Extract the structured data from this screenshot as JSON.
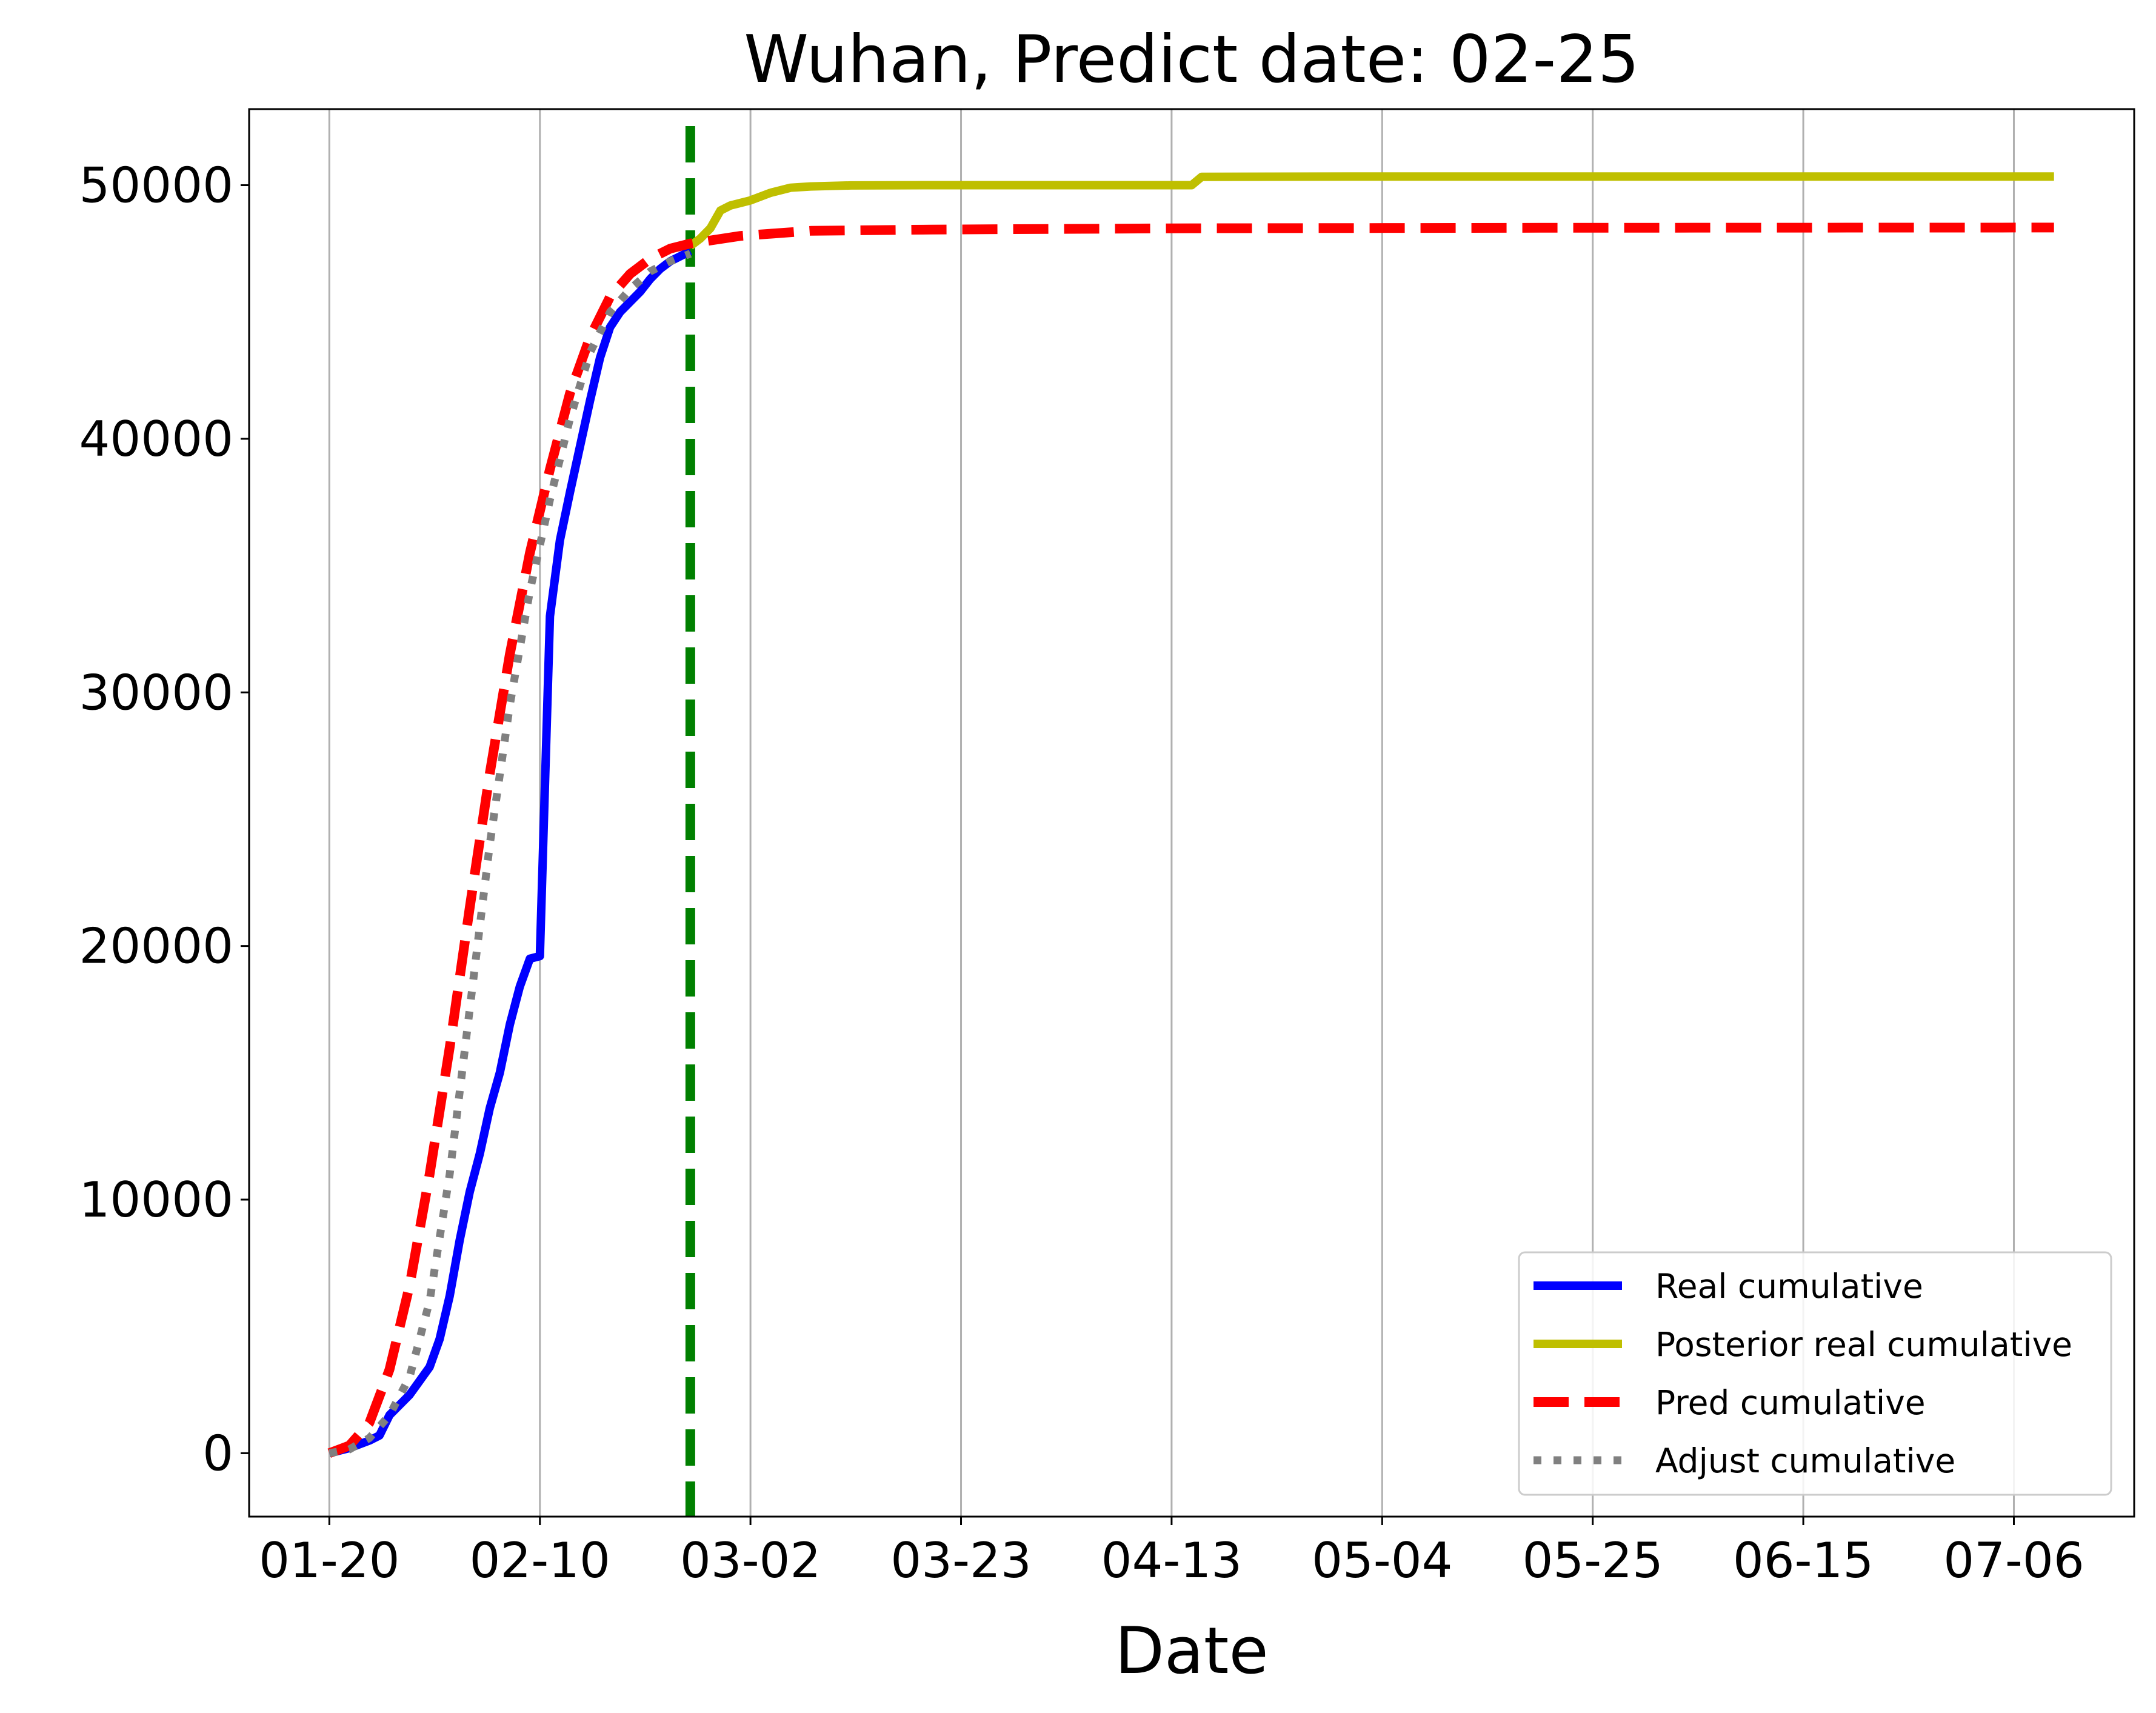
{
  "chart_data": {
    "type": "line",
    "title": "Wuhan, Predict date: 02-25",
    "xlabel": "Date",
    "ylabel": "",
    "x_axis": {
      "unit": "date (mm-dd, 2020)",
      "range": [
        "01-12",
        "07-18"
      ],
      "tick_labels": [
        "01-20",
        "02-10",
        "03-02",
        "03-23",
        "04-13",
        "05-04",
        "05-25",
        "06-15",
        "07-06"
      ]
    },
    "y_axis": {
      "range": [
        -2500,
        53000
      ],
      "tick_values": [
        0,
        10000,
        20000,
        30000,
        40000,
        50000
      ],
      "tick_labels": [
        "0",
        "10000",
        "20000",
        "30000",
        "40000",
        "50000"
      ]
    },
    "grid": "vertical only",
    "legend_position": "lower right",
    "predict_line": {
      "x": "02-25",
      "color": "#008000",
      "style": "dashed"
    },
    "series": [
      {
        "name": "Real cumulative",
        "color": "#0000ff",
        "style": "solid",
        "points": [
          [
            "01-20",
            0
          ],
          [
            "01-22",
            200
          ],
          [
            "01-24",
            500
          ],
          [
            "01-25",
            700
          ],
          [
            "01-26",
            1500
          ],
          [
            "01-28",
            2300
          ],
          [
            "01-30",
            3400
          ],
          [
            "01-31",
            4500
          ],
          [
            "02-01",
            6200
          ],
          [
            "02-02",
            8400
          ],
          [
            "02-03",
            10300
          ],
          [
            "02-04",
            11800
          ],
          [
            "02-05",
            13600
          ],
          [
            "02-06",
            15000
          ],
          [
            "02-07",
            16900
          ],
          [
            "02-08",
            18400
          ],
          [
            "02-09",
            19500
          ],
          [
            "02-10",
            19600
          ],
          [
            "02-11",
            33000
          ],
          [
            "02-12",
            36000
          ],
          [
            "02-13",
            37900
          ],
          [
            "02-14",
            39700
          ],
          [
            "02-15",
            41500
          ],
          [
            "02-16",
            43200
          ],
          [
            "02-17",
            44400
          ],
          [
            "02-18",
            45000
          ],
          [
            "02-19",
            45400
          ],
          [
            "02-20",
            45800
          ],
          [
            "02-21",
            46300
          ],
          [
            "02-22",
            46700
          ],
          [
            "02-23",
            47000
          ],
          [
            "02-24",
            47200
          ],
          [
            "02-25",
            47400
          ]
        ]
      },
      {
        "name": "Posterior real cumulative",
        "color": "#bfbf00",
        "style": "solid",
        "points": [
          [
            "02-25",
            47600
          ],
          [
            "02-26",
            47900
          ],
          [
            "02-27",
            48300
          ],
          [
            "02-28",
            49000
          ],
          [
            "02-29",
            49200
          ],
          [
            "03-01",
            49300
          ],
          [
            "03-02",
            49400
          ],
          [
            "03-04",
            49700
          ],
          [
            "03-06",
            49900
          ],
          [
            "03-08",
            49950
          ],
          [
            "03-12",
            49990
          ],
          [
            "03-20",
            50000
          ],
          [
            "04-01",
            50000
          ],
          [
            "04-15",
            50000
          ],
          [
            "04-16",
            50330
          ],
          [
            "05-01",
            50340
          ],
          [
            "06-01",
            50340
          ],
          [
            "07-10",
            50340
          ]
        ]
      },
      {
        "name": "Pred cumulative",
        "color": "#ff0000",
        "style": "dashed",
        "points": [
          [
            "01-20",
            0
          ],
          [
            "01-22",
            300
          ],
          [
            "01-24",
            1200
          ],
          [
            "01-26",
            3300
          ],
          [
            "01-28",
            6600
          ],
          [
            "01-30",
            11000
          ],
          [
            "02-01",
            16000
          ],
          [
            "02-03",
            21500
          ],
          [
            "02-05",
            26800
          ],
          [
            "02-07",
            31500
          ],
          [
            "02-09",
            35500
          ],
          [
            "02-11",
            38800
          ],
          [
            "02-13",
            41800
          ],
          [
            "02-15",
            44000
          ],
          [
            "02-17",
            45600
          ],
          [
            "02-19",
            46500
          ],
          [
            "02-21",
            47100
          ],
          [
            "02-23",
            47500
          ],
          [
            "02-25",
            47700
          ],
          [
            "03-01",
            48000
          ],
          [
            "03-08",
            48200
          ],
          [
            "03-20",
            48250
          ],
          [
            "04-15",
            48300
          ],
          [
            "05-20",
            48320
          ],
          [
            "07-10",
            48330
          ]
        ]
      },
      {
        "name": "Adjust cumulative",
        "color": "#808080",
        "style": "dotted",
        "points": [
          [
            "01-20",
            0
          ],
          [
            "01-22",
            150
          ],
          [
            "01-24",
            600
          ],
          [
            "01-26",
            1500
          ],
          [
            "01-28",
            3000
          ],
          [
            "01-30",
            6000
          ],
          [
            "02-01",
            11000
          ],
          [
            "02-03",
            17500
          ],
          [
            "02-05",
            24000
          ],
          [
            "02-07",
            29500
          ],
          [
            "02-09",
            34000
          ],
          [
            "02-11",
            37600
          ],
          [
            "02-13",
            40800
          ],
          [
            "02-15",
            43400
          ],
          [
            "02-17",
            45000
          ],
          [
            "02-19",
            45900
          ],
          [
            "02-21",
            46600
          ],
          [
            "02-23",
            47000
          ],
          [
            "02-25",
            47300
          ]
        ]
      }
    ]
  }
}
